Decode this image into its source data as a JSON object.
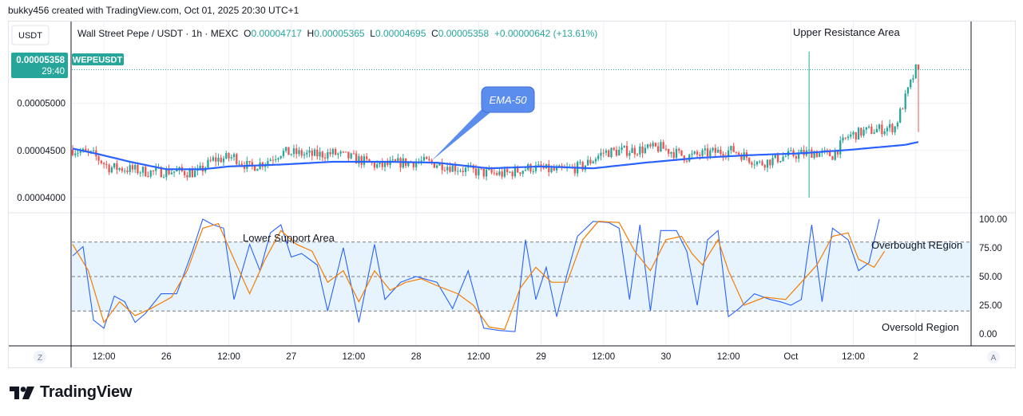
{
  "header": {
    "text": "bukky456 created with TradingView.com, Oct 01, 2025 20:30 UTC+1"
  },
  "currency_button": "USDT",
  "legend": {
    "symbol": "Wall Street Pepe / USDT · 1h · MEXC",
    "o_label": "O",
    "o": "0.00004717",
    "h_label": "H",
    "h": "0.00005365",
    "l_label": "L",
    "l": "0.00004695",
    "c_label": "C",
    "c": "0.00005358",
    "change": "+0.00000642 (+13.61%)"
  },
  "price_tag": {
    "price": "0.00005358",
    "countdown": "29:40",
    "symbol": "WEPEUSDT"
  },
  "annotations": {
    "ema": "EMA-50",
    "upper_resistance": "Upper Resistance Area",
    "lower_support": "Lower Support Area",
    "overbought": "Overbought REgion",
    "oversold": "Oversold Region"
  },
  "bottom_buttons": {
    "left": "Z",
    "right": "A"
  },
  "brand": "TradingView",
  "colors": {
    "up": "#26a69a",
    "down": "#ef5350",
    "ema": "#2962ff",
    "k_line": "#2962ff",
    "d_line": "#f57c00",
    "band": "#e3f2fd",
    "tag": "#26a69a",
    "callout": "#5b8def"
  },
  "chart_data": [
    {
      "type": "candlestick",
      "title": "",
      "y_ticks": [
        "0.00005000",
        "0.00004500",
        "0.00004000"
      ],
      "y_tick_values": [
        5e-05,
        4.5e-05,
        4e-05
      ],
      "ylim": [
        3.88e-05,
        5.76e-05
      ],
      "x_ticks": [
        "12:00",
        "26",
        "12:00",
        "27",
        "12:00",
        "28",
        "12:00",
        "29",
        "12:00",
        "30",
        "12:00",
        "Oct",
        "12:00",
        "2"
      ],
      "x_tick_index": [
        12,
        36,
        60,
        84,
        108,
        132,
        156,
        180,
        204,
        228,
        252,
        276,
        300,
        324
      ],
      "last_price": 5.358e-05,
      "ema_anchors": [
        [
          0,
          4.52e-05
        ],
        [
          10,
          4.46e-05
        ],
        [
          22,
          4.38e-05
        ],
        [
          36,
          4.3e-05
        ],
        [
          50,
          4.3e-05
        ],
        [
          60,
          4.33e-05
        ],
        [
          80,
          4.35e-05
        ],
        [
          100,
          4.38e-05
        ],
        [
          120,
          4.38e-05
        ],
        [
          140,
          4.37e-05
        ],
        [
          160,
          4.31e-05
        ],
        [
          180,
          4.33e-05
        ],
        [
          200,
          4.31e-05
        ],
        [
          220,
          4.37e-05
        ],
        [
          240,
          4.42e-05
        ],
        [
          260,
          4.45e-05
        ],
        [
          280,
          4.47e-05
        ],
        [
          300,
          4.51e-05
        ],
        [
          320,
          4.56e-05
        ],
        [
          325,
          4.59e-05
        ]
      ],
      "candle_anchors": [
        [
          0,
          4.51e-05
        ],
        [
          8,
          4.45e-05
        ],
        [
          14,
          4.32e-05
        ],
        [
          22,
          4.3e-05
        ],
        [
          30,
          4.27e-05
        ],
        [
          38,
          4.28e-05
        ],
        [
          48,
          4.26e-05
        ],
        [
          54,
          4.4e-05
        ],
        [
          62,
          4.43e-05
        ],
        [
          68,
          4.32e-05
        ],
        [
          74,
          4.38e-05
        ],
        [
          80,
          4.48e-05
        ],
        [
          86,
          4.47e-05
        ],
        [
          92,
          4.45e-05
        ],
        [
          100,
          4.47e-05
        ],
        [
          110,
          4.4e-05
        ],
        [
          118,
          4.33e-05
        ],
        [
          126,
          4.37e-05
        ],
        [
          134,
          4.38e-05
        ],
        [
          142,
          4.35e-05
        ],
        [
          150,
          4.3e-05
        ],
        [
          158,
          4.26e-05
        ],
        [
          166,
          4.25e-05
        ],
        [
          176,
          4.32e-05
        ],
        [
          186,
          4.28e-05
        ],
        [
          196,
          4.33e-05
        ],
        [
          204,
          4.48e-05
        ],
        [
          214,
          4.5e-05
        ],
        [
          226,
          4.53e-05
        ],
        [
          236,
          4.43e-05
        ],
        [
          246,
          4.48e-05
        ],
        [
          254,
          4.5e-05
        ],
        [
          264,
          4.36e-05
        ],
        [
          274,
          4.44e-05
        ],
        [
          284,
          4.48e-05
        ],
        [
          292,
          4.45e-05
        ],
        [
          298,
          4.65e-05
        ],
        [
          304,
          4.7e-05
        ],
        [
          316,
          4.75e-05
        ],
        [
          324,
          5.36e-05
        ]
      ]
    },
    {
      "type": "line",
      "title": "",
      "y_ticks": [
        "100.00",
        "75.00",
        "50.00",
        "25.00",
        "0.00"
      ],
      "y_tick_values": [
        100,
        75,
        50,
        25,
        0
      ],
      "ylim": [
        -9,
        102
      ],
      "band": [
        20,
        80
      ],
      "mid": 50,
      "k_anchors": [
        [
          0,
          68
        ],
        [
          4,
          76
        ],
        [
          8,
          12
        ],
        [
          12,
          5
        ],
        [
          16,
          33
        ],
        [
          20,
          28
        ],
        [
          24,
          10
        ],
        [
          28,
          18
        ],
        [
          34,
          35
        ],
        [
          40,
          35
        ],
        [
          46,
          72
        ],
        [
          50,
          100
        ],
        [
          54,
          95
        ],
        [
          58,
          92
        ],
        [
          62,
          30
        ],
        [
          68,
          78
        ],
        [
          72,
          55
        ],
        [
          76,
          88
        ],
        [
          80,
          95
        ],
        [
          84,
          67
        ],
        [
          88,
          70
        ],
        [
          94,
          60
        ],
        [
          98,
          20
        ],
        [
          104,
          75
        ],
        [
          110,
          10
        ],
        [
          116,
          78
        ],
        [
          120,
          30
        ],
        [
          126,
          45
        ],
        [
          132,
          50
        ],
        [
          140,
          45
        ],
        [
          146,
          22
        ],
        [
          152,
          55
        ],
        [
          158,
          5
        ],
        [
          164,
          3
        ],
        [
          170,
          2
        ],
        [
          174,
          82
        ],
        [
          178,
          30
        ],
        [
          182,
          58
        ],
        [
          186,
          15
        ],
        [
          190,
          52
        ],
        [
          194,
          85
        ],
        [
          200,
          98
        ],
        [
          206,
          97
        ],
        [
          210,
          92
        ],
        [
          214,
          30
        ],
        [
          218,
          95
        ],
        [
          222,
          20
        ],
        [
          226,
          90
        ],
        [
          232,
          90
        ],
        [
          236,
          72
        ],
        [
          240,
          25
        ],
        [
          244,
          82
        ],
        [
          248,
          90
        ],
        [
          252,
          15
        ],
        [
          256,
          22
        ],
        [
          262,
          35
        ],
        [
          268,
          30
        ],
        [
          272,
          28
        ],
        [
          276,
          25
        ],
        [
          280,
          30
        ],
        [
          284,
          95
        ],
        [
          288,
          28
        ],
        [
          292,
          92
        ],
        [
          298,
          82
        ],
        [
          302,
          55
        ],
        [
          306,
          62
        ],
        [
          310,
          100
        ]
      ],
      "d_anchors": [
        [
          0,
          78
        ],
        [
          6,
          55
        ],
        [
          12,
          10
        ],
        [
          18,
          28
        ],
        [
          24,
          16
        ],
        [
          30,
          22
        ],
        [
          38,
          32
        ],
        [
          44,
          55
        ],
        [
          50,
          92
        ],
        [
          56,
          96
        ],
        [
          62,
          65
        ],
        [
          68,
          35
        ],
        [
          74,
          65
        ],
        [
          80,
          90
        ],
        [
          86,
          78
        ],
        [
          92,
          72
        ],
        [
          98,
          45
        ],
        [
          104,
          55
        ],
        [
          110,
          28
        ],
        [
          116,
          55
        ],
        [
          122,
          38
        ],
        [
          128,
          45
        ],
        [
          134,
          48
        ],
        [
          140,
          42
        ],
        [
          148,
          35
        ],
        [
          154,
          25
        ],
        [
          160,
          6
        ],
        [
          166,
          4
        ],
        [
          172,
          40
        ],
        [
          178,
          58
        ],
        [
          184,
          45
        ],
        [
          190,
          45
        ],
        [
          196,
          82
        ],
        [
          202,
          98
        ],
        [
          210,
          97
        ],
        [
          216,
          72
        ],
        [
          222,
          55
        ],
        [
          228,
          82
        ],
        [
          234,
          85
        ],
        [
          238,
          70
        ],
        [
          242,
          60
        ],
        [
          248,
          82
        ],
        [
          252,
          55
        ],
        [
          258,
          25
        ],
        [
          266,
          32
        ],
        [
          274,
          30
        ],
        [
          280,
          45
        ],
        [
          286,
          60
        ],
        [
          292,
          85
        ],
        [
          298,
          88
        ],
        [
          302,
          65
        ],
        [
          308,
          58
        ],
        [
          312,
          72
        ]
      ]
    }
  ]
}
